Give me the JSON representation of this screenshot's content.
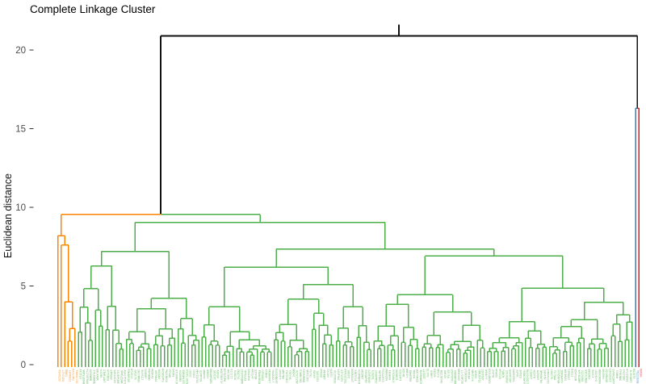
{
  "chart_data": {
    "type": "dendrogram",
    "title": "Complete Linkage Cluster",
    "ylabel": "Euclidean distance",
    "yticks": [
      0,
      5,
      10,
      15,
      20
    ],
    "ylim": [
      0,
      21.5
    ],
    "grid": false,
    "legend": "none",
    "n_leaves": 170,
    "leaf_labels": "tiny rotated sample labels, illegible at this resolution",
    "trunk_color": "#111111",
    "axis_text_color": "#4b4b4b",
    "clusters": [
      {
        "name": "cluster-orange",
        "color": "#FB8604",
        "n_leaves": 6
      },
      {
        "name": "cluster-green",
        "color": "#4DAF4A",
        "n_leaves": 162
      },
      {
        "name": "cluster-blue",
        "color": "#377EB8",
        "n_leaves": 1
      },
      {
        "name": "cluster-red",
        "color": "#E41A1C",
        "n_leaves": 1
      }
    ],
    "key_merges": {
      "root_height": 20.9,
      "orange_green_merge": 9.55,
      "blue_red_merge": 16.3,
      "green_cluster_top": 9.05,
      "orange_cluster_top": 8.2
    },
    "tree": {
      "h": 20.9,
      "children": [
        {
          "h": 9.55,
          "children": [
            {
              "cluster": "orange",
              "h": 8.2,
              "children": [
                {
                  "leaf": 1
                },
                {
                  "h": 7.6,
                  "children": [
                    {
                      "leaf": 1
                    },
                    {
                      "h": 4.0,
                      "children": [
                        {
                          "leaf": 1
                        },
                        {
                          "h": 2.3,
                          "children": [
                            {
                              "h": 1.5,
                              "children": [
                                {
                                  "leaf": 1
                                },
                                {
                                  "leaf": 1
                                }
                              ]
                            },
                            {
                              "leaf": 1
                            }
                          ]
                        }
                      ]
                    }
                  ]
                }
              ]
            },
            {
              "cluster": "green",
              "h": 9.05,
              "children": [
                {
                  "gen": {
                    "n": 36,
                    "h": 7.2,
                    "seed": 101
                  }
                },
                {
                  "h": 7.35,
                  "children": [
                    {
                      "gen": {
                        "n": 50,
                        "h": 6.2,
                        "seed": 202
                      }
                    },
                    {
                      "gen": {
                        "n": 76,
                        "h": 6.9,
                        "seed": 303
                      }
                    }
                  ]
                }
              ]
            }
          ]
        },
        {
          "h": 16.3,
          "children": [
            {
              "cluster": "blue",
              "leaf": 1
            },
            {
              "cluster": "red",
              "leaf": 1
            }
          ]
        }
      ]
    }
  }
}
